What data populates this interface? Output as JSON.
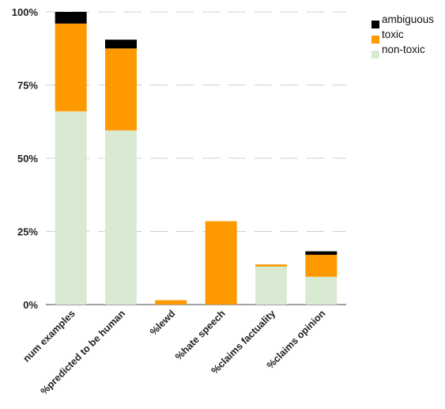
{
  "chart_data": {
    "type": "bar",
    "stacked": true,
    "categories": [
      "num examples",
      "%predicted to be human",
      "%lewd",
      "%hate speech",
      "%claims factuality",
      "%claims opinion"
    ],
    "series": [
      {
        "name": "non-toxic",
        "color": "#d9ead3",
        "values": [
          66,
          59.5,
          0,
          0,
          13,
          9.5
        ]
      },
      {
        "name": "toxic",
        "color": "#ff9900",
        "values": [
          30,
          28,
          1.5,
          28.5,
          0.7,
          7.5
        ]
      },
      {
        "name": "ambiguous",
        "color": "#000000",
        "values": [
          4,
          3,
          0,
          0,
          0,
          1.2
        ]
      }
    ],
    "yticks": [
      "0%",
      "25%",
      "50%",
      "75%",
      "100%"
    ],
    "ylim": [
      0,
      100
    ],
    "grid": true,
    "legend_position": "top-right",
    "legend_order": [
      "ambiguous",
      "toxic",
      "non-toxic"
    ],
    "title": "",
    "xlabel": "",
    "ylabel": ""
  }
}
